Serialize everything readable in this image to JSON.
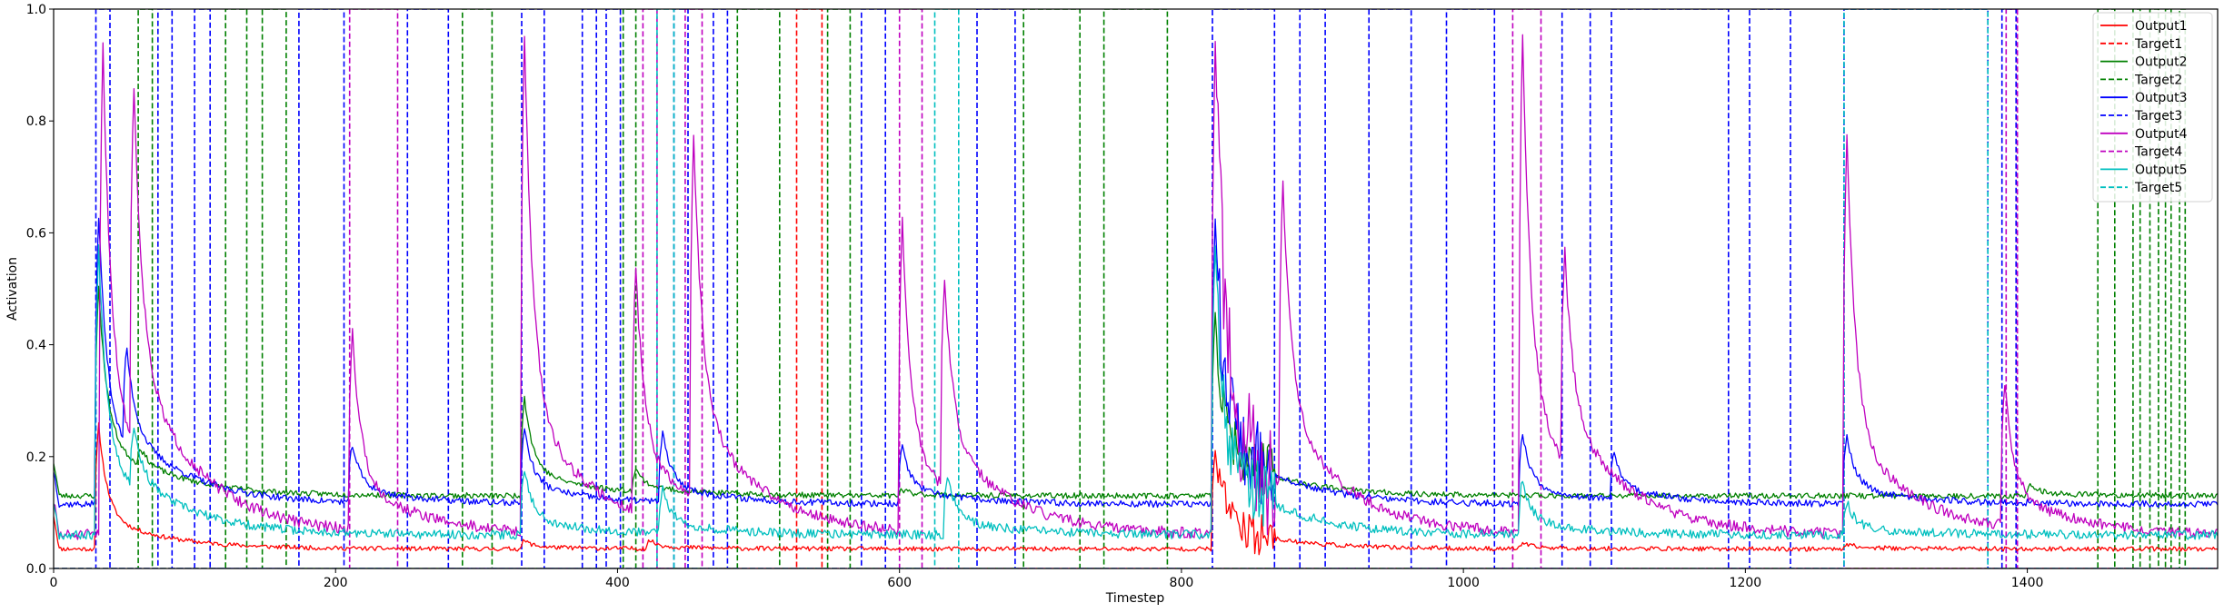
{
  "chart_data": {
    "type": "line",
    "title": "",
    "xlabel": "Timestep",
    "ylabel": "Activation",
    "xlim": [
      0,
      1535
    ],
    "ylim": [
      0,
      1.0
    ],
    "xticks": [
      0,
      200,
      400,
      600,
      800,
      1000,
      1200,
      1400
    ],
    "yticks": [
      0.0,
      0.2,
      0.4,
      0.6,
      0.8,
      1.0
    ],
    "grid": false,
    "legend_position": "top-right",
    "series": [
      {
        "name": "Output1",
        "color": "#ff0000",
        "dash": "solid",
        "kind": "output",
        "baseline": 0.035,
        "event_scale": 0.3,
        "noise": 0.004,
        "seed": 11,
        "events": [
          [
            30,
            0.26
          ],
          [
            332,
            0.05
          ],
          [
            421,
            0.05
          ],
          [
            822,
            0.21
          ],
          [
            1040,
            0.045
          ],
          [
            1270,
            0.045
          ]
        ]
      },
      {
        "name": "Target1",
        "color": "#ff0000",
        "dash": "dashed",
        "kind": "target",
        "intervals": [
          [
            527,
            545
          ]
        ]
      },
      {
        "name": "Output2",
        "color": "#008000",
        "dash": "solid",
        "kind": "output",
        "baseline": 0.13,
        "event_scale": 0.45,
        "noise": 0.005,
        "seed": 23,
        "events": [
          [
            30,
            0.51
          ],
          [
            60,
            0.16
          ],
          [
            210,
            0.125
          ],
          [
            332,
            0.31
          ],
          [
            411,
            0.17
          ],
          [
            600,
            0.14
          ],
          [
            822,
            0.46
          ],
          [
            1040,
            0.12
          ],
          [
            1270,
            0.13
          ],
          [
            1400,
            0.15
          ]
        ]
      },
      {
        "name": "Target2",
        "color": "#008000",
        "dash": "dashed",
        "kind": "target",
        "intervals": [
          [
            60,
            70
          ],
          [
            122,
            137
          ],
          [
            148,
            165
          ],
          [
            290,
            311
          ],
          [
            404,
            413
          ],
          [
            485,
            515
          ],
          [
            549,
            565
          ],
          [
            688,
            728
          ],
          [
            745,
            790
          ],
          [
            1450,
            1462
          ],
          [
            1475,
            1480
          ],
          [
            1487,
            1493
          ],
          [
            1498,
            1502
          ],
          [
            1508,
            1512
          ]
        ]
      },
      {
        "name": "Output3",
        "color": "#0000ff",
        "dash": "solid",
        "kind": "output",
        "baseline": 0.115,
        "event_scale": 0.65,
        "noise": 0.006,
        "seed": 37,
        "events": [
          [
            30,
            0.64
          ],
          [
            50,
            0.29
          ],
          [
            210,
            0.22
          ],
          [
            332,
            0.25
          ],
          [
            430,
            0.24
          ],
          [
            600,
            0.22
          ],
          [
            822,
            0.63
          ],
          [
            1040,
            0.24
          ],
          [
            1105,
            0.2
          ],
          [
            1270,
            0.24
          ],
          [
            1400,
            0.12
          ]
        ]
      },
      {
        "name": "Target3",
        "color": "#0000ff",
        "dash": "dashed",
        "kind": "target",
        "intervals": [
          [
            30,
            40
          ],
          [
            74,
            84
          ],
          [
            100,
            111
          ],
          [
            174,
            206
          ],
          [
            251,
            280
          ],
          [
            332,
            348
          ],
          [
            375,
            385
          ],
          [
            392,
            402
          ],
          [
            440,
            450
          ],
          [
            468,
            478
          ],
          [
            573,
            590
          ],
          [
            655,
            682
          ],
          [
            822,
            866
          ],
          [
            884,
            902
          ],
          [
            933,
            963
          ],
          [
            988,
            1022
          ],
          [
            1070,
            1090
          ],
          [
            1105,
            1188
          ],
          [
            1203,
            1232
          ],
          [
            1270,
            1372
          ],
          [
            1382,
            1392
          ]
        ]
      },
      {
        "name": "Output4",
        "color": "#bf00bf",
        "dash": "solid",
        "kind": "output",
        "baseline": 0.06,
        "event_scale": 0.9,
        "noise": 0.01,
        "seed": 51,
        "events": [
          [
            33,
            0.95
          ],
          [
            55,
            0.71
          ],
          [
            210,
            0.42
          ],
          [
            332,
            0.96
          ],
          [
            411,
            0.5
          ],
          [
            452,
            0.72
          ],
          [
            600,
            0.62
          ],
          [
            630,
            0.44
          ],
          [
            822,
            0.95
          ],
          [
            870,
            0.62
          ],
          [
            1040,
            0.96
          ],
          [
            1070,
            0.44
          ],
          [
            1270,
            0.79
          ],
          [
            1382,
            0.32
          ]
        ]
      },
      {
        "name": "Target4",
        "color": "#bf00bf",
        "dash": "dashed",
        "kind": "target",
        "intervals": [
          [
            210,
            244
          ],
          [
            418,
            428
          ],
          [
            448,
            460
          ],
          [
            600,
            616
          ],
          [
            1035,
            1055
          ],
          [
            1385,
            1393
          ]
        ]
      },
      {
        "name": "Output5",
        "color": "#00bfbf",
        "dash": "solid",
        "kind": "output",
        "baseline": 0.06,
        "event_scale": 0.55,
        "noise": 0.008,
        "seed": 67,
        "events": [
          [
            30,
            0.58
          ],
          [
            55,
            0.17
          ],
          [
            332,
            0.18
          ],
          [
            430,
            0.14
          ],
          [
            632,
            0.17
          ],
          [
            822,
            0.58
          ],
          [
            1040,
            0.16
          ],
          [
            1270,
            0.12
          ]
        ]
      },
      {
        "name": "Target5",
        "color": "#00bfbf",
        "dash": "dashed",
        "kind": "target",
        "intervals": [
          [
            428,
            440
          ],
          [
            625,
            642
          ],
          [
            1270,
            1372
          ]
        ]
      }
    ]
  }
}
